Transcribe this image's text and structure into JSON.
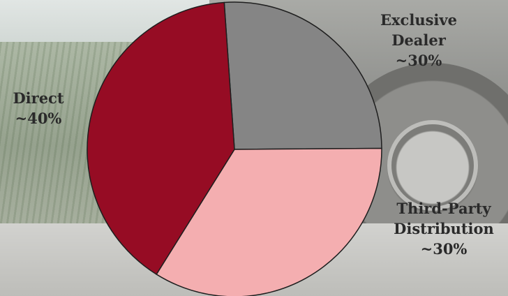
{
  "chart_data": {
    "type": "pie",
    "slices": [
      {
        "label": "Exclusive Dealer",
        "value_label": "~30%",
        "value": 26,
        "color": "#858585"
      },
      {
        "label": "Third-Party Distribution",
        "value_label": "~30%",
        "value": 34,
        "color": "#f4aeb0"
      },
      {
        "label": "Direct",
        "value_label": "~40%",
        "value": 40,
        "color": "#960c24"
      }
    ],
    "start_angle_deg": -4
  },
  "labels": {
    "exclusive": {
      "line1": "Exclusive",
      "line2": "Dealer",
      "pct": "~30%"
    },
    "third": {
      "line1": "Third-Party",
      "line2": "Distribution",
      "pct": "~30%"
    },
    "direct": {
      "line1": "Direct",
      "pct": "~40%"
    }
  }
}
